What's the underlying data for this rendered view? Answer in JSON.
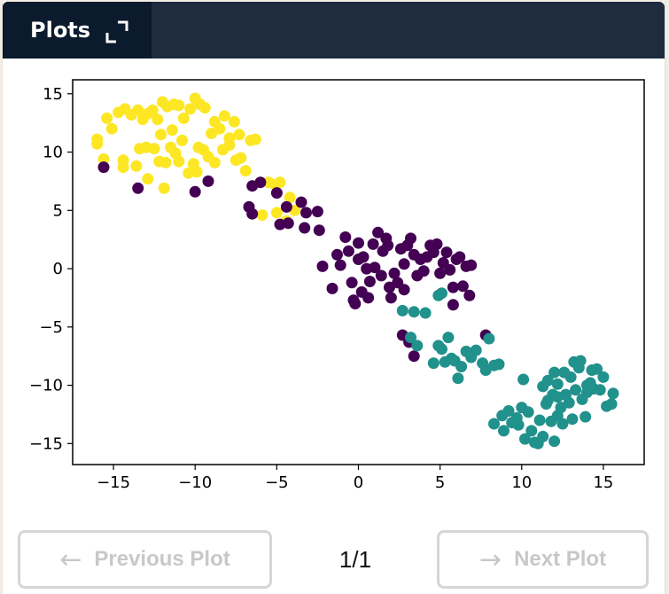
{
  "header": {
    "tab_label": "Plots",
    "expand_icon": "expand-icon"
  },
  "chart_data": {
    "type": "scatter",
    "title": "",
    "xlabel": "",
    "ylabel": "",
    "xlim": [
      -17.5,
      17.5
    ],
    "ylim": [
      -16.8,
      16.2
    ],
    "x_ticks": [
      -15,
      -10,
      -5,
      0,
      5,
      10,
      15
    ],
    "y_ticks": [
      -15,
      -10,
      -5,
      0,
      5,
      10,
      15
    ],
    "x_tick_labels": [
      "−15",
      "−10",
      "−5",
      "0",
      "5",
      "10",
      "15"
    ],
    "y_tick_labels": [
      "−15",
      "−10",
      "−5",
      "0",
      "5",
      "10",
      "15"
    ],
    "grid": false,
    "series": [
      {
        "color": "#fde725",
        "points": [
          [
            -15.4,
            12.9
          ],
          [
            -15.1,
            12.0
          ],
          [
            -14.7,
            13.4
          ],
          [
            -14.3,
            13.7
          ],
          [
            -13.9,
            13.2
          ],
          [
            -13.5,
            13.6
          ],
          [
            -13.2,
            12.8
          ],
          [
            -12.9,
            13.3
          ],
          [
            -12.6,
            13.6
          ],
          [
            -12.3,
            12.8
          ],
          [
            -12.0,
            14.3
          ],
          [
            -11.7,
            13.9
          ],
          [
            -11.3,
            14.1
          ],
          [
            -11.0,
            14.0
          ],
          [
            -10.7,
            12.9
          ],
          [
            -10.3,
            13.7
          ],
          [
            -10.0,
            14.6
          ],
          [
            -9.7,
            14.1
          ],
          [
            -9.4,
            13.8
          ],
          [
            -9.0,
            11.6
          ],
          [
            -8.8,
            12.6
          ],
          [
            -8.5,
            12.0
          ],
          [
            -8.2,
            13.1
          ],
          [
            -7.9,
            11.2
          ],
          [
            -7.6,
            12.6
          ],
          [
            -7.3,
            11.5
          ],
          [
            -16.0,
            11.1
          ],
          [
            -16.0,
            10.7
          ],
          [
            -15.6,
            9.4
          ],
          [
            -14.4,
            9.3
          ],
          [
            -14.4,
            8.7
          ],
          [
            -13.4,
            10.3
          ],
          [
            -13.0,
            10.4
          ],
          [
            -12.5,
            10.3
          ],
          [
            -12.2,
            9.2
          ],
          [
            -11.8,
            9.1
          ],
          [
            -11.5,
            10.4
          ],
          [
            -11.2,
            9.9
          ],
          [
            -11.0,
            9.2
          ],
          [
            -10.8,
            11.0
          ],
          [
            -10.4,
            8.2
          ],
          [
            -10.1,
            9.0
          ],
          [
            -9.8,
            10.4
          ],
          [
            -9.5,
            10.2
          ],
          [
            -9.2,
            9.6
          ],
          [
            -8.8,
            9.1
          ],
          [
            -8.3,
            10.2
          ],
          [
            -7.9,
            10.6
          ],
          [
            -7.5,
            9.3
          ],
          [
            -7.2,
            9.5
          ],
          [
            -6.9,
            8.4
          ],
          [
            -6.6,
            11.0
          ],
          [
            -6.3,
            11.1
          ],
          [
            -11.9,
            6.9
          ],
          [
            -12.9,
            7.7
          ],
          [
            -9.9,
            8.3
          ],
          [
            -11.4,
            11.9
          ],
          [
            -12.1,
            11.5
          ],
          [
            -13.6,
            8.8
          ],
          [
            -5.5,
            7.4
          ],
          [
            -5.1,
            7.2
          ],
          [
            -4.8,
            7.4
          ],
          [
            -4.2,
            6.1
          ],
          [
            -3.9,
            5.0
          ],
          [
            -5.0,
            4.8
          ],
          [
            -4.4,
            4.1
          ],
          [
            -5.9,
            4.6
          ]
        ]
      },
      {
        "color": "#440154",
        "points": [
          [
            -15.6,
            8.7
          ],
          [
            -13.5,
            6.9
          ],
          [
            -10.0,
            6.6
          ],
          [
            -9.2,
            7.5
          ],
          [
            -6.5,
            7.1
          ],
          [
            -6.0,
            7.4
          ],
          [
            -5.0,
            6.5
          ],
          [
            -4.4,
            5.3
          ],
          [
            -3.5,
            5.7
          ],
          [
            -3.2,
            4.8
          ],
          [
            -6.7,
            5.3
          ],
          [
            -6.5,
            4.7
          ],
          [
            -4.8,
            3.8
          ],
          [
            -4.3,
            3.9
          ],
          [
            -3.3,
            3.5
          ],
          [
            -2.5,
            4.9
          ],
          [
            -2.4,
            3.3
          ],
          [
            -2.2,
            0.2
          ],
          [
            -1.6,
            -1.7
          ],
          [
            -1.3,
            1.2
          ],
          [
            -1.1,
            0.3
          ],
          [
            -0.8,
            2.7
          ],
          [
            -0.6,
            1.5
          ],
          [
            -0.4,
            -1.2
          ],
          [
            -0.3,
            -2.7
          ],
          [
            -0.2,
            -3.0
          ],
          [
            0.0,
            0.8
          ],
          [
            0.0,
            2.2
          ],
          [
            0.2,
            -2.0
          ],
          [
            0.3,
            1.0
          ],
          [
            0.5,
            0.0
          ],
          [
            0.7,
            -1.1
          ],
          [
            0.9,
            2.1
          ],
          [
            1.0,
            0.1
          ],
          [
            1.2,
            3.1
          ],
          [
            1.4,
            -0.6
          ],
          [
            1.5,
            1.5
          ],
          [
            1.7,
            2.6
          ],
          [
            1.9,
            -1.6
          ],
          [
            2.0,
            -2.5
          ],
          [
            2.2,
            -0.4
          ],
          [
            2.4,
            -1.2
          ],
          [
            2.6,
            1.7
          ],
          [
            2.8,
            0.4
          ],
          [
            3.0,
            2.0
          ],
          [
            3.2,
            2.6
          ],
          [
            3.4,
            1.2
          ],
          [
            3.6,
            -0.6
          ],
          [
            3.8,
            0.8
          ],
          [
            4.0,
            -0.2
          ],
          [
            4.2,
            1.0
          ],
          [
            4.4,
            2.0
          ],
          [
            4.6,
            1.4
          ],
          [
            4.8,
            2.1
          ],
          [
            5.0,
            -0.4
          ],
          [
            5.2,
            0.5
          ],
          [
            5.4,
            1.4
          ],
          [
            5.6,
            -0.1
          ],
          [
            5.8,
            -1.6
          ],
          [
            6.0,
            0.8
          ],
          [
            6.2,
            1.0
          ],
          [
            6.4,
            -1.5
          ],
          [
            6.6,
            0.2
          ],
          [
            6.8,
            -2.3
          ],
          [
            6.9,
            0.3
          ],
          [
            5.8,
            -3.1
          ],
          [
            2.8,
            -1.8
          ],
          [
            0.6,
            -2.5
          ],
          [
            1.8,
            2.0
          ],
          [
            2.7,
            -5.7
          ],
          [
            3.1,
            -6.3
          ],
          [
            3.4,
            -7.5
          ],
          [
            7.8,
            -5.7
          ]
        ]
      },
      {
        "color": "#21918c",
        "points": [
          [
            2.7,
            -3.6
          ],
          [
            3.4,
            -3.7
          ],
          [
            4.1,
            -3.8
          ],
          [
            4.9,
            -2.3
          ],
          [
            5.1,
            -2.1
          ],
          [
            3.2,
            -5.9
          ],
          [
            3.6,
            -6.6
          ],
          [
            4.6,
            -8.1
          ],
          [
            4.9,
            -6.6
          ],
          [
            5.1,
            -6.9
          ],
          [
            5.3,
            -8.0
          ],
          [
            5.5,
            -5.9
          ],
          [
            5.7,
            -7.7
          ],
          [
            5.9,
            -7.9
          ],
          [
            6.1,
            -9.4
          ],
          [
            6.3,
            -8.4
          ],
          [
            6.6,
            -7.1
          ],
          [
            6.9,
            -7.6
          ],
          [
            7.2,
            -7.0
          ],
          [
            7.6,
            -8.1
          ],
          [
            7.8,
            -8.7
          ],
          [
            8.0,
            -6.0
          ],
          [
            8.3,
            -8.3
          ],
          [
            8.6,
            -8.2
          ],
          [
            8.3,
            -13.3
          ],
          [
            8.8,
            -12.6
          ],
          [
            8.9,
            -13.9
          ],
          [
            9.2,
            -12.2
          ],
          [
            9.4,
            -13.2
          ],
          [
            9.7,
            -12.8
          ],
          [
            10.0,
            -11.9
          ],
          [
            10.2,
            -14.6
          ],
          [
            10.4,
            -12.3
          ],
          [
            10.6,
            -13.9
          ],
          [
            10.8,
            -14.9
          ],
          [
            11.0,
            -15.0
          ],
          [
            11.1,
            -13.0
          ],
          [
            11.3,
            -14.4
          ],
          [
            11.6,
            -11.3
          ],
          [
            11.8,
            -13.1
          ],
          [
            12.0,
            -14.8
          ],
          [
            12.2,
            -12.6
          ],
          [
            12.4,
            -11.9
          ],
          [
            12.5,
            -13.3
          ],
          [
            12.7,
            -10.8
          ],
          [
            12.9,
            -11.5
          ],
          [
            13.0,
            -9.3
          ],
          [
            13.1,
            -12.9
          ],
          [
            13.3,
            -10.4
          ],
          [
            13.5,
            -8.5
          ],
          [
            13.7,
            -11.2
          ],
          [
            13.9,
            -12.7
          ],
          [
            14.0,
            -10.6
          ],
          [
            14.2,
            -9.8
          ],
          [
            14.4,
            -10.3
          ],
          [
            14.6,
            -8.6
          ],
          [
            14.8,
            -10.4
          ],
          [
            15.0,
            -9.3
          ],
          [
            15.2,
            -11.8
          ],
          [
            15.5,
            -11.6
          ],
          [
            15.6,
            -10.7
          ],
          [
            11.3,
            -10.1
          ],
          [
            11.5,
            -11.6
          ],
          [
            11.9,
            -10.8
          ],
          [
            12.2,
            -9.9
          ],
          [
            12.6,
            -8.9
          ],
          [
            13.2,
            -8.0
          ],
          [
            13.6,
            -7.9
          ],
          [
            10.1,
            -9.5
          ],
          [
            9.8,
            -13.4
          ],
          [
            12.0,
            -8.9
          ],
          [
            11.6,
            -9.6
          ],
          [
            12.2,
            -11.0
          ],
          [
            14.3,
            -8.7
          ],
          [
            14.0,
            -10.0
          ]
        ]
      }
    ]
  },
  "footer": {
    "prev_label": "Previous Plot",
    "next_label": "Next Plot",
    "page_indicator": "1/1",
    "prev_icon": "arrow-left-icon",
    "next_icon": "arrow-right-icon"
  }
}
